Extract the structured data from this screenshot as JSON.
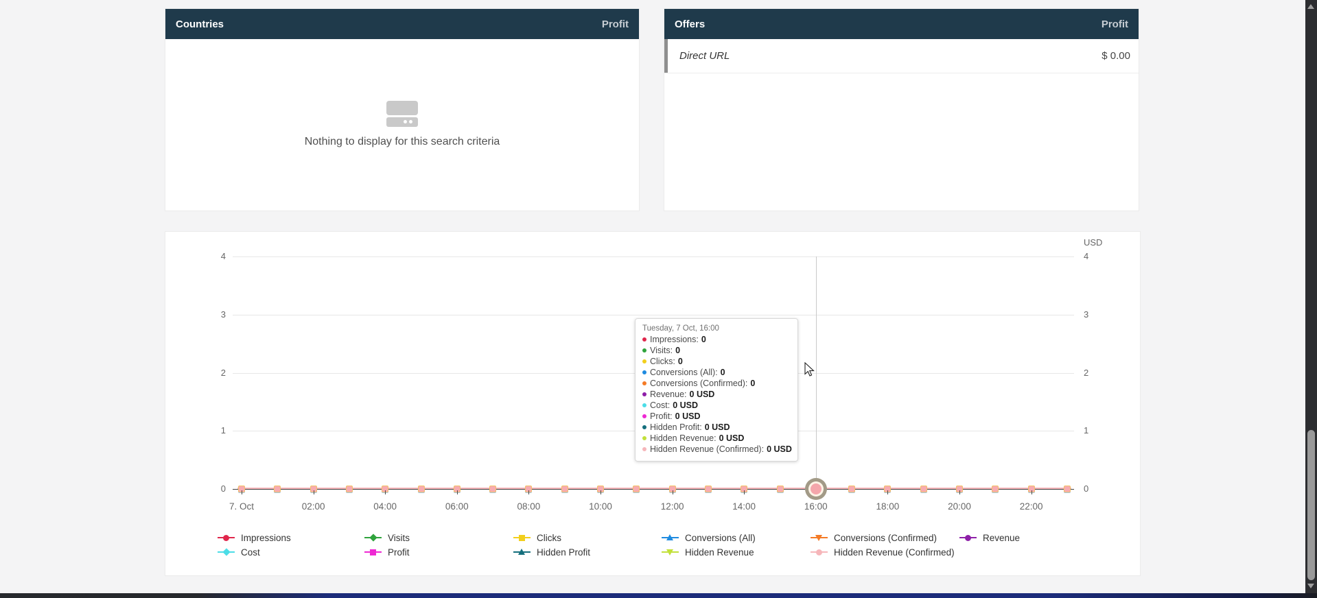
{
  "panels": {
    "countries": {
      "title": "Countries",
      "metric_label": "Profit",
      "empty_text": "Nothing to display for this search criteria"
    },
    "offers": {
      "title": "Offers",
      "metric_label": "Profit",
      "rows": [
        {
          "name": "Direct URL",
          "value": "$ 0.00"
        }
      ]
    }
  },
  "chart_data": {
    "type": "line",
    "title": "",
    "unit_label": "USD",
    "x_tick_labels": [
      "7. Oct",
      "02:00",
      "04:00",
      "06:00",
      "08:00",
      "10:00",
      "12:00",
      "14:00",
      "16:00",
      "18:00",
      "20:00",
      "22:00"
    ],
    "x_range": "7 Oct 00:00 to 23:00, one point per hour",
    "num_points": 24,
    "points_per_tick_label": 2,
    "ylim": [
      0,
      4
    ],
    "yticks_left": [
      "0",
      "1",
      "2",
      "3",
      "4"
    ],
    "yticks_right": [
      "0",
      "1",
      "2",
      "3",
      "4"
    ],
    "grid": true,
    "legend_position": "bottom",
    "shared_values": [
      0,
      0,
      0,
      0,
      0,
      0,
      0,
      0,
      0,
      0,
      0,
      0,
      0,
      0,
      0,
      0,
      0,
      0,
      0,
      0,
      0,
      0,
      0,
      0
    ],
    "series_values_note": "every series is constant 0 across all 24 points",
    "series": [
      {
        "name": "Impressions",
        "color": "#e0264b",
        "marker": "circle"
      },
      {
        "name": "Visits",
        "color": "#2fa33c",
        "marker": "diamond"
      },
      {
        "name": "Clicks",
        "color": "#f2cf1d",
        "marker": "square"
      },
      {
        "name": "Conversions (All)",
        "color": "#1f8be0",
        "marker": "triangle-up"
      },
      {
        "name": "Conversions (Confirmed)",
        "color": "#f47b27",
        "marker": "triangle-down"
      },
      {
        "name": "Revenue",
        "color": "#8e1fa8",
        "marker": "circle"
      },
      {
        "name": "Cost",
        "color": "#4cdde7",
        "marker": "diamond"
      },
      {
        "name": "Profit",
        "color": "#ee28d3",
        "marker": "square"
      },
      {
        "name": "Hidden Profit",
        "color": "#156f7d",
        "marker": "triangle-up"
      },
      {
        "name": "Hidden Revenue",
        "color": "#c2e03a",
        "marker": "triangle-down"
      },
      {
        "name": "Hidden Revenue (Confirmed)",
        "color": "#f6b6ba",
        "marker": "circle"
      }
    ],
    "hover_point": {
      "x_label": "16:00",
      "index": 16,
      "value": 0
    }
  },
  "tooltip": {
    "title": "Tuesday, 7 Oct, 16:00",
    "items": [
      {
        "label": "Impressions",
        "value": "0",
        "color": "#e0264b"
      },
      {
        "label": "Visits",
        "value": "0",
        "color": "#2fa33c"
      },
      {
        "label": "Clicks",
        "value": "0",
        "color": "#f2cf1d"
      },
      {
        "label": "Conversions (All)",
        "value": "0",
        "color": "#1f8be0"
      },
      {
        "label": "Conversions (Confirmed)",
        "value": "0",
        "color": "#f47b27"
      },
      {
        "label": "Revenue",
        "value": "0 USD",
        "color": "#8e1fa8"
      },
      {
        "label": "Cost",
        "value": "0 USD",
        "color": "#4cdde7"
      },
      {
        "label": "Profit",
        "value": "0 USD",
        "color": "#ee28d3"
      },
      {
        "label": "Hidden Profit",
        "value": "0 USD",
        "color": "#156f7d"
      },
      {
        "label": "Hidden Revenue",
        "value": "0 USD",
        "color": "#c2e03a"
      },
      {
        "label": "Hidden Revenue (Confirmed)",
        "value": "0 USD",
        "color": "#f6b6ba"
      }
    ]
  },
  "colors": {
    "header_bg": "#1f3a4b",
    "page_bg": "#f4f4f5",
    "zero_line": "#f6b6ba"
  }
}
